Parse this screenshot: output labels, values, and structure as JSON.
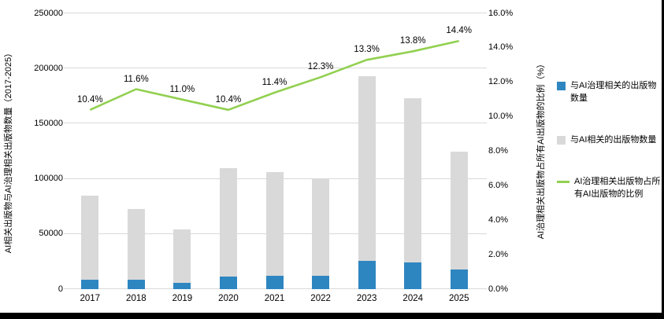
{
  "chart_data": {
    "type": "bar",
    "subtype": "overlapped-bars-with-line-overlay-dual-axis",
    "categories": [
      "2017",
      "2018",
      "2019",
      "2020",
      "2021",
      "2022",
      "2023",
      "2024",
      "2025"
    ],
    "series": [
      {
        "name": "与AI治理相关的出版物数量",
        "type": "bar",
        "axis": "left",
        "color": "#2E86C1",
        "values": [
          8800,
          8500,
          5900,
          11400,
          12100,
          12300,
          25700,
          23900,
          18000
        ]
      },
      {
        "name": "与AI相关的出版物数量",
        "type": "bar",
        "axis": "left",
        "color": "#D9D9D9",
        "values": [
          85000,
          73000,
          54000,
          110000,
          106000,
          100000,
          193000,
          173000,
          125000
        ]
      },
      {
        "name": "AI治理相关出版物占所有AI出版物的比例",
        "type": "line",
        "axis": "right",
        "color": "#92D050",
        "values": [
          10.4,
          11.6,
          11.0,
          10.4,
          11.4,
          12.3,
          13.3,
          13.8,
          14.4
        ],
        "labels": [
          "10.4%",
          "11.6%",
          "11.0%",
          "10.4%",
          "11.4%",
          "12.3%",
          "13.3%",
          "13.8%",
          "14.4%"
        ]
      }
    ],
    "left_axis": {
      "title": "AI相关出版物与AI治理相关出版物数量（2017-2025）",
      "min": 0,
      "max": 250000,
      "step": 50000,
      "tick_labels": [
        "0",
        "50000",
        "100000",
        "150000",
        "200000",
        "250000"
      ]
    },
    "right_axis": {
      "title": "AI治理相关出版物占所有AI出版物的比例（%）",
      "min": 0,
      "max": 16,
      "step": 2,
      "tick_labels": [
        "0.0%",
        "2.0%",
        "4.0%",
        "6.0%",
        "8.0%",
        "10.0%",
        "12.0%",
        "14.0%",
        "16.0%"
      ]
    },
    "grid": true,
    "legend_position": "right",
    "colors": {
      "governance_bar": "#2E86C1",
      "total_bar": "#D9D9D9",
      "ratio_line": "#92D050",
      "gridline": "#D9D9D9",
      "frame": "#000000"
    }
  },
  "legend": {
    "items": [
      {
        "label": "与AI治理相关的出版物数量",
        "swatch": "square",
        "color": "#2E86C1"
      },
      {
        "label": "与AI相关的出版物数量",
        "swatch": "square",
        "color": "#D9D9D9"
      },
      {
        "label": "AI治理相关出版物占所有AI出版物的比例",
        "swatch": "line",
        "color": "#92D050"
      }
    ]
  }
}
